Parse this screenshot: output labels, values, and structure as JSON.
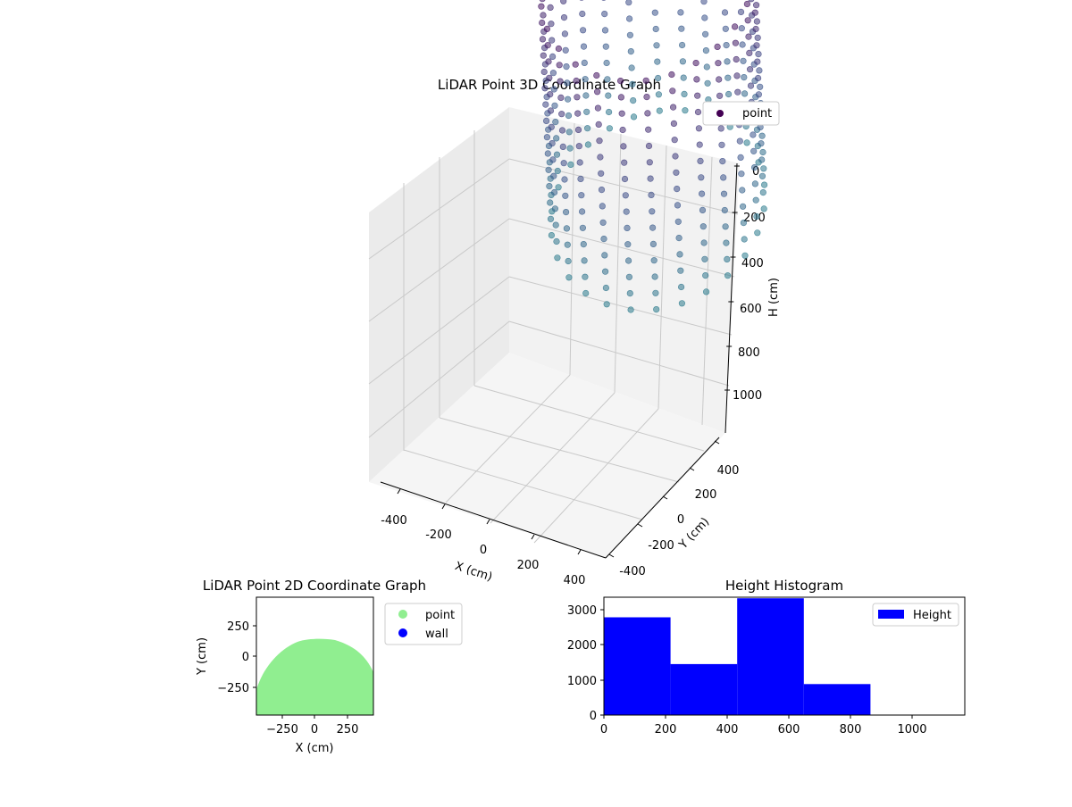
{
  "chart_data": [
    {
      "type": "scatter3d",
      "title": "LiDAR Point 3D Coordinate Graph",
      "xlabel": "X (cm)",
      "ylabel": "Y (cm)",
      "zlabel": "H (cm)",
      "xlim": [
        -470,
        470
      ],
      "ylim": [
        -470,
        470
      ],
      "zlim": [
        1150,
        0
      ],
      "xticks": [
        "-400",
        "-200",
        "0",
        "200",
        "400"
      ],
      "yticks": [
        "-400",
        "-200",
        "0",
        "200",
        "400"
      ],
      "zticks": [
        "0",
        "200",
        "400",
        "600",
        "800",
        "1000"
      ],
      "legend": [
        {
          "name": "point",
          "color": "#440154"
        }
      ],
      "legend_position": "top-right",
      "colormap": "viridis",
      "grid": true,
      "series": [
        {
          "name": "point",
          "shape": "partial cylindrical wall",
          "radius_cm": 440,
          "x_range": [
            -440,
            440
          ],
          "y_range": [
            -440,
            440
          ],
          "h_range": [
            0,
            880
          ],
          "rows": 15,
          "columns": 26,
          "count": 390
        }
      ]
    },
    {
      "type": "scatter",
      "title": "LiDAR Point 2D Coordinate Graph",
      "xlabel": "X (cm)",
      "ylabel": "Y (cm)",
      "xlim": [
        -450,
        450
      ],
      "ylim": [
        -450,
        450
      ],
      "xticks": [
        "−250",
        "0",
        "250"
      ],
      "yticks": [
        "250",
        "0",
        "−250"
      ],
      "legend": [
        {
          "name": "point",
          "color": "#90ee90"
        },
        {
          "name": "wall",
          "color": "#0000ff"
        }
      ],
      "legend_position": "outside right",
      "series": [
        {
          "name": "point",
          "shape": "filled half-disc",
          "y_max": 130,
          "y_min": -450
        }
      ]
    },
    {
      "type": "bar",
      "title": "Height Histogram",
      "xlabel": "",
      "ylabel": "",
      "xlim": [
        0,
        1170
      ],
      "ylim": [
        0,
        3350
      ],
      "xticks": [
        "0",
        "200",
        "400",
        "600",
        "800",
        "1000"
      ],
      "yticks": [
        "0",
        "1000",
        "2000",
        "3000"
      ],
      "legend": [
        {
          "name": "Height",
          "color": "#0000ff"
        }
      ],
      "legend_position": "top-right",
      "bins": [
        {
          "x0": 0,
          "x1": 216,
          "count": 2780
        },
        {
          "x0": 216,
          "x1": 432,
          "count": 1450
        },
        {
          "x0": 432,
          "x1": 648,
          "count": 3320
        },
        {
          "x0": 648,
          "x1": 864,
          "count": 880
        },
        {
          "x0": 864,
          "x1": 1080,
          "count": 0
        }
      ]
    }
  ]
}
